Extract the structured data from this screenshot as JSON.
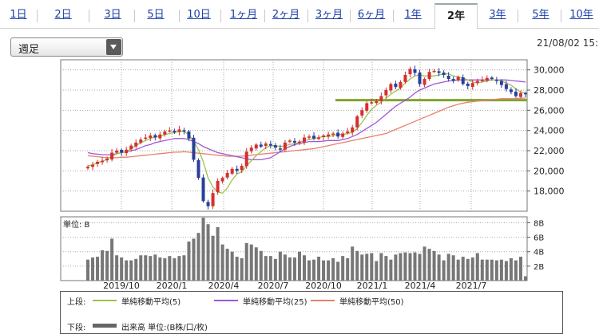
{
  "tabs": [
    {
      "label": "1日"
    },
    {
      "label": "2日"
    },
    {
      "label": "3日"
    },
    {
      "label": "5日"
    },
    {
      "label": "10日"
    },
    {
      "label": "1ヶ月"
    },
    {
      "label": "2ヶ月"
    },
    {
      "label": "3ヶ月"
    },
    {
      "label": "6ヶ月"
    },
    {
      "label": "1年"
    },
    {
      "label": "2年"
    },
    {
      "label": "3年"
    },
    {
      "label": "5年"
    },
    {
      "label": "10年"
    }
  ],
  "active_tab": "2年",
  "period_select": {
    "value": "週足"
  },
  "datetime": "21/08/02 15:",
  "legend": {
    "upper_label": "上段:",
    "lower_label": "下段:",
    "ma5": "単純移動平均(5)",
    "ma25": "単純移動平均(25)",
    "ma50": "単純移動平均(50)",
    "volume": "出来高 単位:(B株/口/枚)"
  },
  "colors": {
    "up": "#d43030",
    "down": "#2a3f9a",
    "ma5": "#9cc24a",
    "ma25": "#a356d6",
    "ma50": "#e8806a",
    "support_line": "#7fa52d",
    "volume": "#777777"
  },
  "chart_data": {
    "type": "candlestick",
    "price_axis": {
      "ticks": [
        18000,
        20000,
        22000,
        24000,
        26000,
        28000,
        30000
      ],
      "ylim": [
        16000,
        31000
      ]
    },
    "volume_axis": {
      "unit_label": "単位: B",
      "ticks": [
        "2B",
        "4B",
        "6B",
        "8B"
      ],
      "tick_values": [
        2,
        4,
        6,
        8
      ],
      "ylim": [
        0,
        8.6
      ]
    },
    "x_tick_labels": [
      "2019/10",
      "2020/1",
      "2020/4",
      "2020/7",
      "2020/10",
      "2021/1",
      "2021/4",
      "2021/7"
    ],
    "support_level": 27000,
    "weekly_close": [
      20400,
      20600,
      20900,
      21000,
      21200,
      21800,
      22000,
      21800,
      22100,
      22500,
      22800,
      23100,
      23300,
      23500,
      23300,
      23600,
      23900,
      24000,
      23800,
      24100,
      23900,
      23200,
      21100,
      19300,
      17000,
      16500,
      17800,
      19000,
      19300,
      19800,
      20200,
      20000,
      20500,
      21900,
      22300,
      22600,
      22400,
      22700,
      22500,
      22300,
      22100,
      22800,
      23000,
      22800,
      22900,
      23300,
      23400,
      23200,
      23300,
      23500,
      23600,
      23700,
      23400,
      23700,
      23900,
      24300,
      25400,
      26000,
      26700,
      26800,
      26900,
      27400,
      28000,
      28600,
      28300,
      28800,
      29500,
      30100,
      29700,
      28600,
      29100,
      29800,
      29900,
      29700,
      29500,
      29100,
      28900,
      29300,
      28600,
      28400,
      28700,
      28900,
      29000,
      29200,
      29100,
      28900,
      28500,
      28100,
      27800,
      27400,
      27700,
      27600
    ],
    "ma5": [
      20500,
      20600,
      20800,
      20950,
      21150,
      21450,
      21700,
      21800,
      21900,
      22200,
      22500,
      22800,
      23000,
      23200,
      23350,
      23400,
      23600,
      23700,
      23800,
      23900,
      23900,
      23600,
      22900,
      22100,
      20900,
      19300,
      18400,
      17900,
      17800,
      18300,
      19100,
      19700,
      19900,
      20500,
      21000,
      21500,
      21900,
      22300,
      22500,
      22500,
      22400,
      22500,
      22600,
      22700,
      22800,
      23000,
      23100,
      23200,
      23300,
      23400,
      23400,
      23500,
      23600,
      23600,
      23700,
      23800,
      24200,
      24800,
      25500,
      26100,
      26500,
      26800,
      27200,
      27600,
      27900,
      28200,
      28700,
      29100,
      29400,
      29500,
      29400,
      29400,
      29400,
      29500,
      29600,
      29600,
      29400,
      29300,
      29200,
      29000,
      28800,
      28700,
      28800,
      28900,
      29000,
      29000,
      28900,
      28700,
      28500,
      28100,
      27800,
      27700
    ],
    "ma25": [
      21800,
      21700,
      21650,
      21600,
      21600,
      21600,
      21700,
      21800,
      21900,
      22000,
      22100,
      22300,
      22500,
      22600,
      22800,
      22900,
      23000,
      23100,
      23200,
      23200,
      23200,
      23100,
      22900,
      22700,
      22400,
      22200,
      22000,
      21800,
      21700,
      21600,
      21500,
      21400,
      21300,
      21200,
      21100,
      21100,
      21100,
      21200,
      21300,
      21600,
      21900,
      22200,
      22400,
      22600,
      22700,
      22800,
      22900,
      22900,
      22900,
      22950,
      23000,
      23000,
      23000,
      23100,
      23200,
      23400,
      23600,
      23900,
      24200,
      24500,
      24800,
      25200,
      25600,
      26000,
      26400,
      26700,
      27000,
      27300,
      27700,
      28000,
      28200,
      28400,
      28600,
      28700,
      28800,
      28900,
      28950,
      29000,
      29000,
      29000,
      29000,
      29000,
      29000,
      29000,
      29000,
      29000,
      29000,
      29000,
      28950,
      28900,
      28850,
      28800
    ],
    "ma50": [
      21500,
      21450,
      21400,
      21350,
      21300,
      21300,
      21300,
      21350,
      21350,
      21400,
      21450,
      21500,
      21550,
      21600,
      21650,
      21700,
      21750,
      21800,
      21850,
      21850,
      21900,
      21850,
      21800,
      21750,
      21700,
      21650,
      21600,
      21550,
      21500,
      21450,
      21450,
      21450,
      21450,
      21500,
      21550,
      21600,
      21650,
      21700,
      21750,
      21800,
      21850,
      21900,
      21950,
      22000,
      22050,
      22100,
      22150,
      22200,
      22300,
      22400,
      22500,
      22600,
      22700,
      22800,
      22900,
      23000,
      23100,
      23200,
      23300,
      23400,
      23500,
      23600,
      23700,
      23900,
      24100,
      24300,
      24500,
      24700,
      24900,
      25100,
      25300,
      25500,
      25700,
      25900,
      26100,
      26300,
      26450,
      26600,
      26700,
      26800,
      26850,
      26900,
      26950,
      27000,
      27050,
      27100,
      27150,
      27150,
      27150,
      27150,
      27200,
      27200
    ],
    "weekly_volume": [
      2.9,
      3.2,
      3.3,
      4.2,
      4.1,
      5.8,
      3.5,
      3.2,
      2.8,
      2.8,
      3.0,
      3.5,
      3.5,
      3.4,
      3.6,
      3.2,
      3.1,
      3.4,
      3.1,
      3.4,
      3.5,
      5.4,
      5.8,
      6.6,
      8.7,
      7.8,
      6.2,
      7.4,
      5.0,
      4.4,
      4.0,
      3.3,
      3.1,
      5.2,
      5.0,
      4.6,
      4.1,
      3.4,
      3.4,
      3.0,
      4.0,
      3.6,
      3.2,
      3.2,
      4.0,
      3.5,
      2.8,
      2.9,
      3.3,
      2.8,
      2.8,
      3.1,
      2.6,
      3.4,
      3.1,
      4.7,
      4.1,
      3.6,
      3.7,
      3.8,
      2.7,
      3.8,
      3.4,
      2.9,
      3.6,
      3.8,
      3.9,
      3.8,
      3.9,
      3.7,
      4.7,
      4.4,
      4.1,
      3.6,
      2.8,
      3.7,
      3.5,
      2.9,
      3.3,
      3.0,
      3.2,
      3.8,
      2.9,
      2.9,
      2.9,
      2.8,
      2.9,
      2.7,
      3.1,
      2.8,
      3.3,
      0.6
    ]
  }
}
